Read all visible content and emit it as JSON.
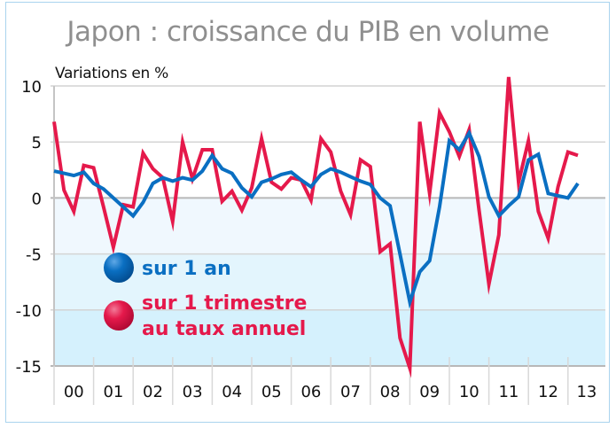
{
  "chart_data": {
    "type": "line",
    "title": "Japon : croissance du PIB en volume",
    "ylabel": "Variations en %",
    "xlabel": "",
    "ylim": [
      -15,
      10
    ],
    "yticks": [
      10,
      5,
      0,
      -5,
      -10,
      -15
    ],
    "grid": true,
    "categories": [
      "00",
      "01",
      "02",
      "03",
      "04",
      "05",
      "06",
      "07",
      "08",
      "09",
      "10",
      "11",
      "12",
      "13"
    ],
    "x_unit": "quarter",
    "legend_position": "bottom-left-inside",
    "series": [
      {
        "name": "sur 1 an",
        "color": "#0a6fc2",
        "values": [
          2.4,
          2.2,
          2.0,
          2.3,
          1.3,
          0.8,
          0.0,
          -0.8,
          -1.6,
          -0.4,
          1.3,
          1.8,
          1.5,
          1.8,
          1.6,
          2.4,
          3.8,
          2.6,
          2.2,
          0.9,
          0.1,
          1.4,
          1.7,
          2.1,
          2.3,
          1.6,
          1.0,
          2.1,
          2.6,
          2.3,
          1.9,
          1.5,
          1.2,
          0.0,
          -0.7,
          -5.0,
          -9.3,
          -6.6,
          -5.6,
          -0.8,
          5.1,
          4.3,
          5.8,
          3.7,
          0.1,
          -1.6,
          -0.7,
          0.1,
          3.4,
          3.9,
          0.4,
          0.2,
          0.0,
          1.3
        ]
      },
      {
        "name": "sur 1 trimestre au taux annuel",
        "color": "#e5194b",
        "values": [
          6.8,
          0.7,
          -1.2,
          2.9,
          2.7,
          -0.8,
          -4.4,
          -0.6,
          -0.8,
          4.0,
          2.6,
          1.8,
          -2.1,
          5.0,
          1.7,
          4.3,
          4.3,
          -0.3,
          0.6,
          -1.1,
          0.9,
          5.3,
          1.4,
          0.8,
          1.8,
          1.6,
          -0.2,
          5.3,
          4.1,
          0.6,
          -1.5,
          3.4,
          2.8,
          -4.8,
          -4.1,
          -12.5,
          -15.2,
          6.8,
          0.4,
          7.6,
          5.9,
          3.7,
          6.1,
          -1.1,
          -7.7,
          -3.3,
          10.8,
          1.4,
          5.1,
          -1.2,
          -3.6,
          1.0,
          4.1,
          3.8
        ]
      }
    ]
  },
  "legend": {
    "items": [
      {
        "label": "sur 1 an",
        "color": "#0a6fc2"
      },
      {
        "label_line1": "sur 1 trimestre",
        "label_line2": "au taux annuel",
        "color": "#e5194b"
      }
    ]
  }
}
